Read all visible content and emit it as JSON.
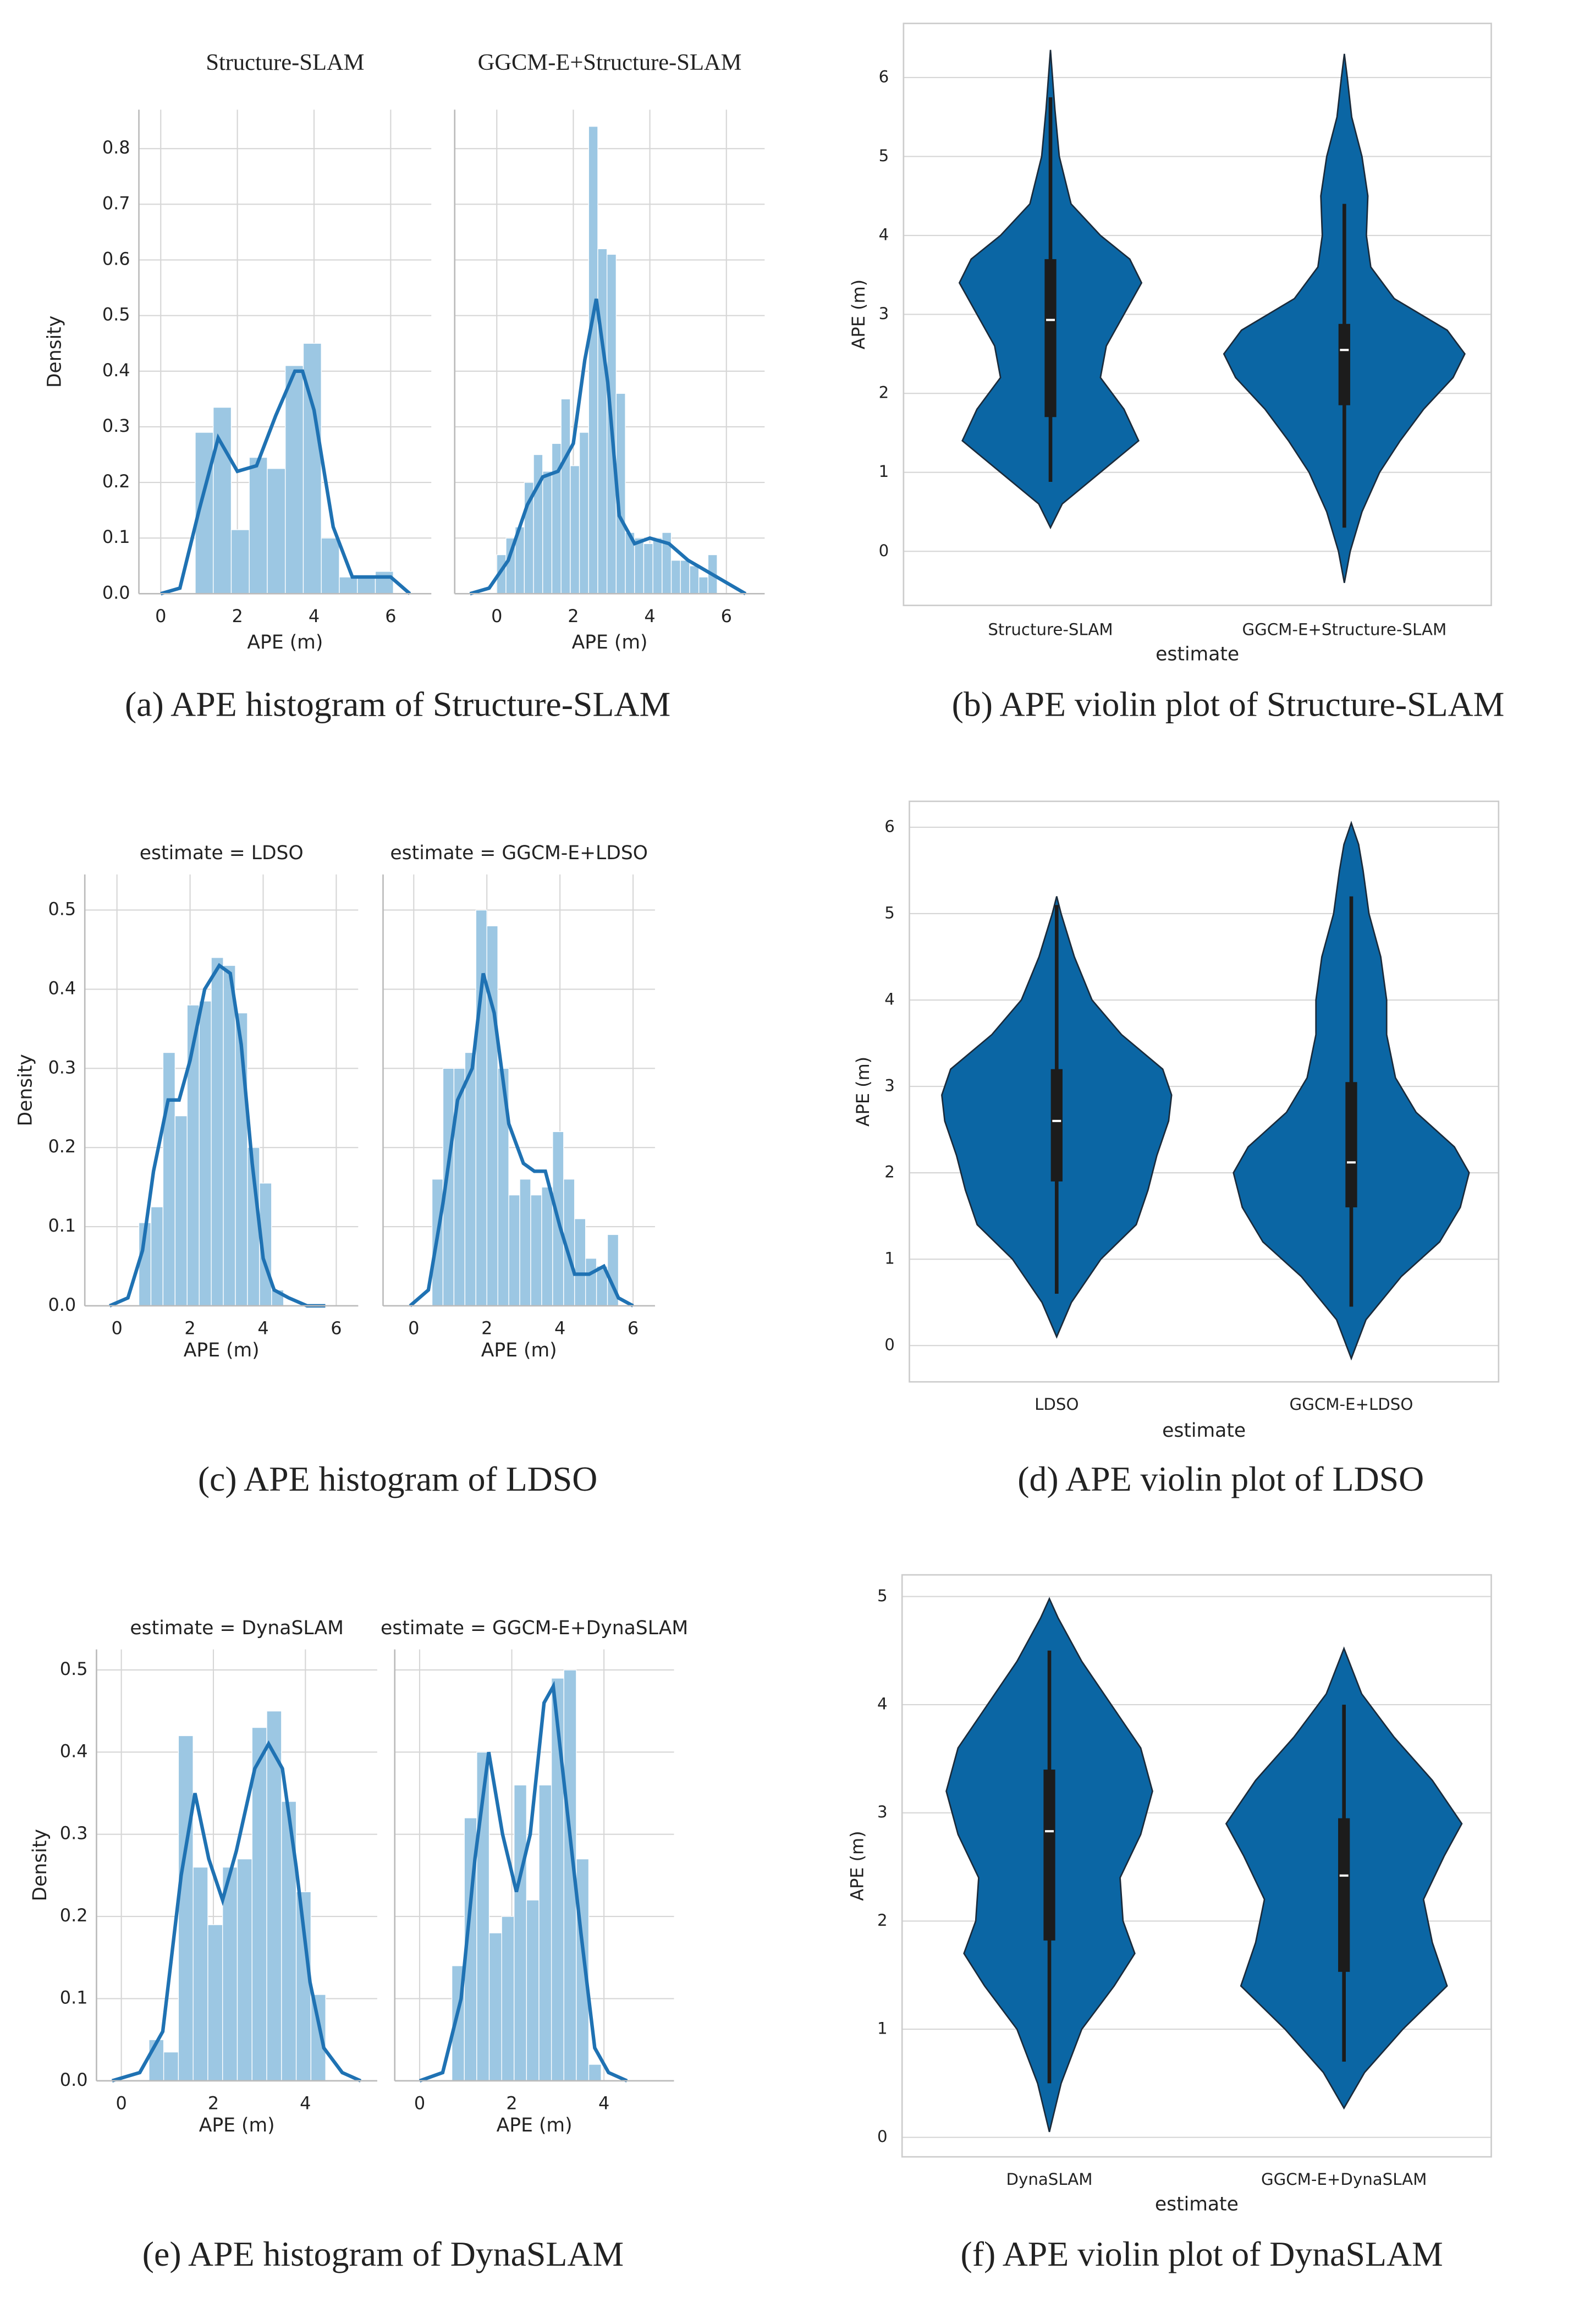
{
  "chart_data": [
    {
      "type": "histogram",
      "caption": "(a) APE histogram of Structure-SLAM",
      "ylabel": "Density",
      "bar_color": "#9cc7e3",
      "line_color": "#1f72b3",
      "grid": true,
      "ylim": [
        0,
        0.87
      ],
      "yticks": [
        {
          "value": 0,
          "label": "0.0"
        },
        0.1,
        0.2,
        0.3,
        0.4,
        0.5,
        0.6,
        0.7,
        0.8
      ],
      "facets": [
        {
          "title": "Structure-SLAM",
          "xlabel": "APE (m)",
          "xlim": [
            -0.57,
            7.06
          ],
          "xticks": [
            0,
            2,
            4,
            6
          ],
          "bins": [
            0.9,
            1.37,
            1.84,
            2.31,
            2.78,
            3.25,
            3.72,
            4.19,
            4.66,
            5.13,
            5.6,
            6.07
          ],
          "counts": [
            0.29,
            0.335,
            0.115,
            0.245,
            0.225,
            0.41,
            0.45,
            0.1,
            0.03,
            0.03,
            0.04
          ],
          "kde": {
            "x": [
              0,
              0.5,
              1.0,
              1.5,
              2.0,
              2.5,
              3.0,
              3.5,
              3.7,
              4.0,
              4.5,
              5.0,
              5.5,
              6.0,
              6.5
            ],
            "y": [
              0,
              0.01,
              0.15,
              0.28,
              0.22,
              0.23,
              0.32,
              0.4,
              0.4,
              0.33,
              0.12,
              0.03,
              0.03,
              0.03,
              0
            ]
          }
        },
        {
          "title": "GGCM-E+Structure-SLAM",
          "xlabel": "APE (m)",
          "xlim": [
            -1.1,
            7.0
          ],
          "xticks": [
            0,
            2,
            4,
            6
          ],
          "bins": [
            0,
            0.24,
            0.48,
            0.72,
            0.96,
            1.2,
            1.44,
            1.68,
            1.92,
            2.16,
            2.4,
            2.64,
            2.88,
            3.12,
            3.36,
            3.6,
            3.84,
            4.08,
            4.32,
            4.56,
            4.8,
            5.04,
            5.28,
            5.52,
            5.76
          ],
          "counts": [
            0.07,
            0.1,
            0.12,
            0.2,
            0.25,
            0.22,
            0.27,
            0.35,
            0.23,
            0.29,
            0.84,
            0.62,
            0.61,
            0.36,
            0.11,
            0.1,
            0.09,
            0.1,
            0.11,
            0.06,
            0.06,
            0.05,
            0.03,
            0.07
          ],
          "kde": {
            "x": [
              -0.7,
              -0.2,
              0.3,
              0.8,
              1.2,
              1.6,
              2.0,
              2.3,
              2.6,
              2.9,
              3.2,
              3.6,
              4.0,
              4.5,
              5.0,
              5.5,
              6.0,
              6.5
            ],
            "y": [
              0,
              0.01,
              0.06,
              0.16,
              0.21,
              0.22,
              0.27,
              0.42,
              0.53,
              0.38,
              0.14,
              0.09,
              0.1,
              0.09,
              0.06,
              0.04,
              0.02,
              0
            ]
          }
        }
      ]
    },
    {
      "type": "violin",
      "caption": "(b) APE violin plot of Structure-SLAM",
      "xlabel": "estimate",
      "ylabel": "APE (m)",
      "color": "#0b66a4",
      "grid": true,
      "ylim": [
        -0.685,
        6.685
      ],
      "yticks": [
        0,
        1,
        2,
        3,
        4,
        5,
        6
      ],
      "categories": [
        "Structure-SLAM",
        "GGCM-E+Structure-SLAM"
      ],
      "violins": [
        {
          "y": [
            0.3,
            0.6,
            1.0,
            1.4,
            1.8,
            2.2,
            2.6,
            3.0,
            3.4,
            3.7,
            4.0,
            4.4,
            5.0,
            5.6,
            6.0,
            6.35
          ],
          "width": [
            0,
            0.04,
            0.17,
            0.3,
            0.25,
            0.17,
            0.19,
            0.25,
            0.31,
            0.27,
            0.17,
            0.07,
            0.03,
            0.015,
            0.007,
            0
          ],
          "whisker_low": 0.88,
          "q1": 1.7,
          "median": 2.93,
          "q3": 3.7,
          "whisker_high": 5.75
        },
        {
          "y": [
            -0.4,
            0,
            0.5,
            1.0,
            1.4,
            1.8,
            2.2,
            2.5,
            2.8,
            3.2,
            3.6,
            4.0,
            4.5,
            5.0,
            5.5,
            6.0,
            6.3
          ],
          "width": [
            0,
            0.02,
            0.06,
            0.12,
            0.19,
            0.27,
            0.37,
            0.41,
            0.35,
            0.17,
            0.09,
            0.075,
            0.08,
            0.06,
            0.025,
            0.01,
            0
          ],
          "whisker_low": 0.3,
          "q1": 1.85,
          "median": 2.55,
          "q3": 2.88,
          "whisker_high": 4.4
        }
      ]
    },
    {
      "type": "histogram",
      "caption": "(c) APE histogram of LDSO",
      "ylabel": "Density",
      "bar_color": "#9cc7e3",
      "line_color": "#1f72b3",
      "grid": true,
      "ylim": [
        0,
        0.545
      ],
      "yticks": [
        {
          "value": 0,
          "label": "0.0"
        },
        0.1,
        0.2,
        0.3,
        0.4,
        0.5
      ],
      "facets": [
        {
          "title": "estimate = LDSO",
          "xlabel": "APE (m)",
          "xlim": [
            -0.88,
            6.6
          ],
          "xticks": [
            0,
            2,
            4,
            6
          ],
          "bins": [
            0.6,
            0.93,
            1.26,
            1.59,
            1.92,
            2.25,
            2.58,
            2.91,
            3.24,
            3.57,
            3.9,
            4.23,
            4.56
          ],
          "counts": [
            0.105,
            0.125,
            0.32,
            0.24,
            0.38,
            0.385,
            0.44,
            0.43,
            0.37,
            0.2,
            0.155,
            0.02
          ],
          "kde": {
            "x": [
              -0.2,
              0.3,
              0.7,
              1.0,
              1.4,
              1.7,
              2.0,
              2.4,
              2.8,
              3.1,
              3.4,
              3.7,
              4.0,
              4.3,
              4.7,
              5.2,
              5.7
            ],
            "y": [
              0,
              0.01,
              0.07,
              0.17,
              0.26,
              0.26,
              0.31,
              0.4,
              0.43,
              0.42,
              0.33,
              0.18,
              0.06,
              0.02,
              0.01,
              0,
              0
            ]
          }
        },
        {
          "title": "estimate = GGCM-E+LDSO",
          "xlabel": "APE (m)",
          "xlim": [
            -0.84,
            6.6
          ],
          "xticks": [
            0,
            2,
            4,
            6
          ],
          "bins": [
            0.5,
            0.8,
            1.1,
            1.4,
            1.7,
            2.0,
            2.3,
            2.6,
            2.9,
            3.2,
            3.5,
            3.8,
            4.1,
            4.4,
            4.7,
            5.0,
            5.3,
            5.6
          ],
          "counts": [
            0.16,
            0.3,
            0.3,
            0.32,
            0.5,
            0.48,
            0.3,
            0.14,
            0.16,
            0.14,
            0.15,
            0.22,
            0.16,
            0.11,
            0.06,
            0.05,
            0.09
          ],
          "kde": {
            "x": [
              -0.1,
              0.4,
              0.8,
              1.2,
              1.6,
              1.9,
              2.2,
              2.6,
              3.0,
              3.3,
              3.6,
              4.0,
              4.4,
              4.8,
              5.2,
              5.6,
              6.0
            ],
            "y": [
              0,
              0.02,
              0.13,
              0.26,
              0.3,
              0.42,
              0.37,
              0.23,
              0.18,
              0.17,
              0.17,
              0.1,
              0.04,
              0.04,
              0.05,
              0.01,
              0
            ]
          }
        }
      ]
    },
    {
      "type": "violin",
      "caption": "(d) APE violin plot of LDSO",
      "xlabel": "estimate",
      "ylabel": "APE (m)",
      "color": "#0b66a4",
      "grid": true,
      "ylim": [
        -0.42,
        6.3
      ],
      "yticks": [
        0,
        1,
        2,
        3,
        4,
        5,
        6
      ],
      "categories": [
        "LDSO",
        "GGCM-E+LDSO"
      ],
      "violins": [
        {
          "y": [
            0.1,
            0.5,
            1.0,
            1.4,
            1.8,
            2.2,
            2.6,
            2.9,
            3.2,
            3.6,
            4.0,
            4.5,
            5.0,
            5.2
          ],
          "width": [
            0,
            0.05,
            0.15,
            0.27,
            0.31,
            0.34,
            0.38,
            0.39,
            0.36,
            0.22,
            0.12,
            0.06,
            0.015,
            0
          ],
          "whisker_low": 0.6,
          "q1": 1.9,
          "median": 2.6,
          "q3": 3.2,
          "whisker_high": 5.1
        },
        {
          "y": [
            -0.15,
            0.3,
            0.8,
            1.2,
            1.6,
            2.0,
            2.3,
            2.7,
            3.1,
            3.6,
            4.0,
            4.5,
            5.0,
            5.5,
            5.8,
            6.05
          ],
          "width": [
            0,
            0.05,
            0.17,
            0.3,
            0.37,
            0.4,
            0.35,
            0.22,
            0.15,
            0.12,
            0.12,
            0.1,
            0.06,
            0.04,
            0.025,
            0
          ],
          "whisker_low": 0.45,
          "q1": 1.6,
          "median": 2.12,
          "q3": 3.05,
          "whisker_high": 5.2
        }
      ]
    },
    {
      "type": "histogram",
      "caption": "(e) APE histogram of DynaSLAM",
      "ylabel": "Density",
      "bar_color": "#9cc7e3",
      "line_color": "#1f72b3",
      "grid": true,
      "ylim": [
        0,
        0.525
      ],
      "yticks": [
        {
          "value": 0,
          "label": "0.0"
        },
        0.1,
        0.2,
        0.3,
        0.4,
        0.5
      ],
      "facets": [
        {
          "title": "estimate = DynaSLAM",
          "xlabel": "APE (m)",
          "xlim": [
            -0.54,
            5.56
          ],
          "xticks": [
            0,
            2,
            4
          ],
          "bins": [
            0.6,
            0.92,
            1.24,
            1.56,
            1.88,
            2.2,
            2.52,
            2.84,
            3.16,
            3.48,
            3.8,
            4.12,
            4.44
          ],
          "counts": [
            0.05,
            0.035,
            0.42,
            0.26,
            0.19,
            0.26,
            0.27,
            0.43,
            0.45,
            0.34,
            0.23,
            0.105
          ],
          "kde": {
            "x": [
              -0.2,
              0.4,
              0.9,
              1.3,
              1.6,
              1.9,
              2.2,
              2.5,
              2.9,
              3.2,
              3.5,
              3.8,
              4.1,
              4.4,
              4.8,
              5.2
            ],
            "y": [
              0,
              0.01,
              0.06,
              0.25,
              0.35,
              0.27,
              0.22,
              0.28,
              0.38,
              0.41,
              0.38,
              0.26,
              0.12,
              0.04,
              0.01,
              0
            ]
          }
        },
        {
          "title": "estimate = GGCM-E+DynaSLAM",
          "xlabel": "APE (m)",
          "xlim": [
            -0.54,
            5.52
          ],
          "xticks": [
            0,
            2,
            4
          ],
          "bins": [
            0.7,
            0.97,
            1.24,
            1.51,
            1.78,
            2.05,
            2.32,
            2.59,
            2.86,
            3.13,
            3.4,
            3.67,
            3.94
          ],
          "counts": [
            0.14,
            0.32,
            0.4,
            0.18,
            0.2,
            0.36,
            0.22,
            0.36,
            0.49,
            0.5,
            0.27,
            0.02
          ],
          "kde": {
            "x": [
              0,
              0.5,
              0.9,
              1.2,
              1.5,
              1.8,
              2.1,
              2.4,
              2.7,
              2.9,
              3.2,
              3.5,
              3.8,
              4.1,
              4.5
            ],
            "y": [
              0,
              0.01,
              0.1,
              0.27,
              0.4,
              0.3,
              0.23,
              0.3,
              0.46,
              0.48,
              0.33,
              0.18,
              0.04,
              0.01,
              0
            ]
          }
        }
      ]
    },
    {
      "type": "violin",
      "caption": "(f) APE violin plot of DynaSLAM",
      "xlabel": "estimate",
      "ylabel": "APE (m)",
      "color": "#0b66a4",
      "grid": true,
      "ylim": [
        -0.18,
        5.2
      ],
      "yticks": [
        0,
        1,
        2,
        3,
        4,
        5
      ],
      "categories": [
        "DynaSLAM",
        "GGCM-E+DynaSLAM"
      ],
      "violins": [
        {
          "y": [
            0.05,
            0.5,
            1.0,
            1.4,
            1.7,
            2.0,
            2.4,
            2.8,
            3.2,
            3.6,
            4.0,
            4.4,
            4.8,
            4.98
          ],
          "width": [
            0,
            0.04,
            0.11,
            0.22,
            0.29,
            0.25,
            0.24,
            0.31,
            0.35,
            0.31,
            0.21,
            0.11,
            0.03,
            0
          ],
          "whisker_low": 0.5,
          "q1": 1.82,
          "median": 2.83,
          "q3": 3.4,
          "whisker_high": 4.5
        },
        {
          "y": [
            0.27,
            0.6,
            1.0,
            1.4,
            1.8,
            2.2,
            2.6,
            2.9,
            3.3,
            3.7,
            4.1,
            4.52
          ],
          "width": [
            0,
            0.07,
            0.2,
            0.35,
            0.3,
            0.27,
            0.34,
            0.4,
            0.3,
            0.17,
            0.06,
            0
          ],
          "whisker_low": 0.7,
          "q1": 1.53,
          "median": 2.42,
          "q3": 2.95,
          "whisker_high": 4.0
        }
      ]
    }
  ]
}
